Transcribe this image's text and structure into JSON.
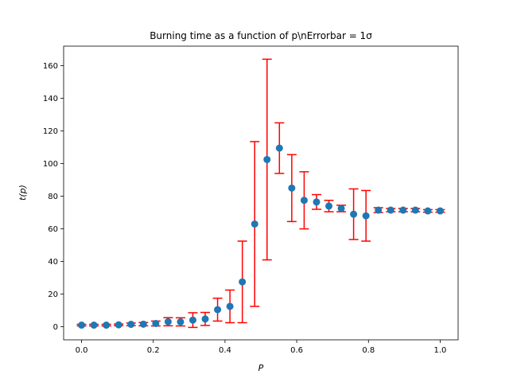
{
  "chart_data": {
    "type": "scatter",
    "title": "Burning time as a function of p\\nErrorbar = 1σ",
    "xlabel": "P",
    "ylabel": "t(p)",
    "xlim": [
      -0.05,
      1.05
    ],
    "ylim": [
      -8,
      172
    ],
    "xticks": [
      0.0,
      0.2,
      0.4,
      0.6,
      0.8,
      1.0
    ],
    "xtick_labels": [
      "0.0",
      "0.2",
      "0.4",
      "0.6",
      "0.8",
      "1.0"
    ],
    "yticks": [
      0,
      20,
      40,
      60,
      80,
      100,
      120,
      140,
      160
    ],
    "ytick_labels": [
      "0",
      "20",
      "40",
      "60",
      "80",
      "100",
      "120",
      "140",
      "160"
    ],
    "grid": false,
    "colors": {
      "marker": "#1f77b4",
      "errorbar": "#ff0000"
    },
    "series": [
      {
        "x": [
          0.0,
          0.0345,
          0.069,
          0.1034,
          0.1379,
          0.1724,
          0.2069,
          0.2414,
          0.2759,
          0.3103,
          0.3448,
          0.3793,
          0.4138,
          0.4483,
          0.4828,
          0.5172,
          0.5517,
          0.5862,
          0.6207,
          0.6552,
          0.6897,
          0.7241,
          0.7586,
          0.7931,
          0.8276,
          0.8621,
          0.8966,
          0.931,
          0.9655,
          1.0
        ],
        "y": [
          1.0,
          1.0,
          1.0,
          1.2,
          1.5,
          1.6,
          2.0,
          3.1,
          3.0,
          4.1,
          4.8,
          10.5,
          12.5,
          27.5,
          63.0,
          102.5,
          109.5,
          85.0,
          77.5,
          76.5,
          74.0,
          72.5,
          69.0,
          68.0,
          71.5,
          71.5,
          71.5,
          71.5,
          71.0,
          71.0
        ],
        "yerr": [
          0.5,
          0.5,
          0.5,
          0.5,
          0.8,
          1.0,
          1.5,
          2.5,
          2.5,
          4.5,
          4.0,
          7.0,
          10.0,
          25.0,
          50.5,
          61.5,
          15.5,
          20.5,
          17.5,
          4.5,
          3.5,
          2.0,
          15.5,
          15.5,
          1.5,
          1.0,
          1.0,
          1.0,
          0.8,
          0.8
        ]
      }
    ]
  }
}
